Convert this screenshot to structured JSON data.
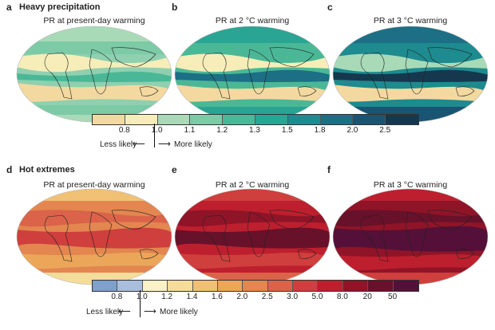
{
  "top": {
    "section_title": "Heavy precipitation",
    "panels": [
      {
        "letter": "a",
        "title": "PR at present-day warming"
      },
      {
        "letter": "b",
        "title": "PR at 2 °C warming"
      },
      {
        "letter": "c",
        "title": "PR at 3 °C warming"
      }
    ],
    "colorbar": {
      "colors": [
        "#f3d9a0",
        "#f7edb8",
        "#a9dab8",
        "#7ccaa6",
        "#4ab896",
        "#2aa493",
        "#1d8b8f",
        "#1c6f85",
        "#1a5473",
        "#15384f"
      ],
      "ticks": [
        "0.8",
        "1.0",
        "1.1",
        "1.2",
        "1.3",
        "1.5",
        "1.8",
        "2.0",
        "2.5"
      ]
    },
    "less_label": "Less likely",
    "more_label": "More likely"
  },
  "bottom": {
    "section_title": "Hot extremes",
    "panels": [
      {
        "letter": "d",
        "title": "PR at present-day warming"
      },
      {
        "letter": "e",
        "title": "PR at 2 °C warming"
      },
      {
        "letter": "f",
        "title": "PR at 3 °C warming"
      }
    ],
    "colorbar": {
      "colors": [
        "#7f9fcc",
        "#a9bedd",
        "#fbf1c6",
        "#f6dc9a",
        "#f0c174",
        "#eba65a",
        "#e38650",
        "#da6349",
        "#cf3f3d",
        "#bd1f2e",
        "#8f1428",
        "#68112a",
        "#541038"
      ],
      "ticks": [
        "0.8",
        "1.0",
        "1.2",
        "1.4",
        "1.6",
        "2.0",
        "2.5",
        "3.0",
        "5.0",
        "8.0",
        "20",
        "50"
      ]
    },
    "less_label": "Less likely",
    "more_label": "More likely"
  }
}
